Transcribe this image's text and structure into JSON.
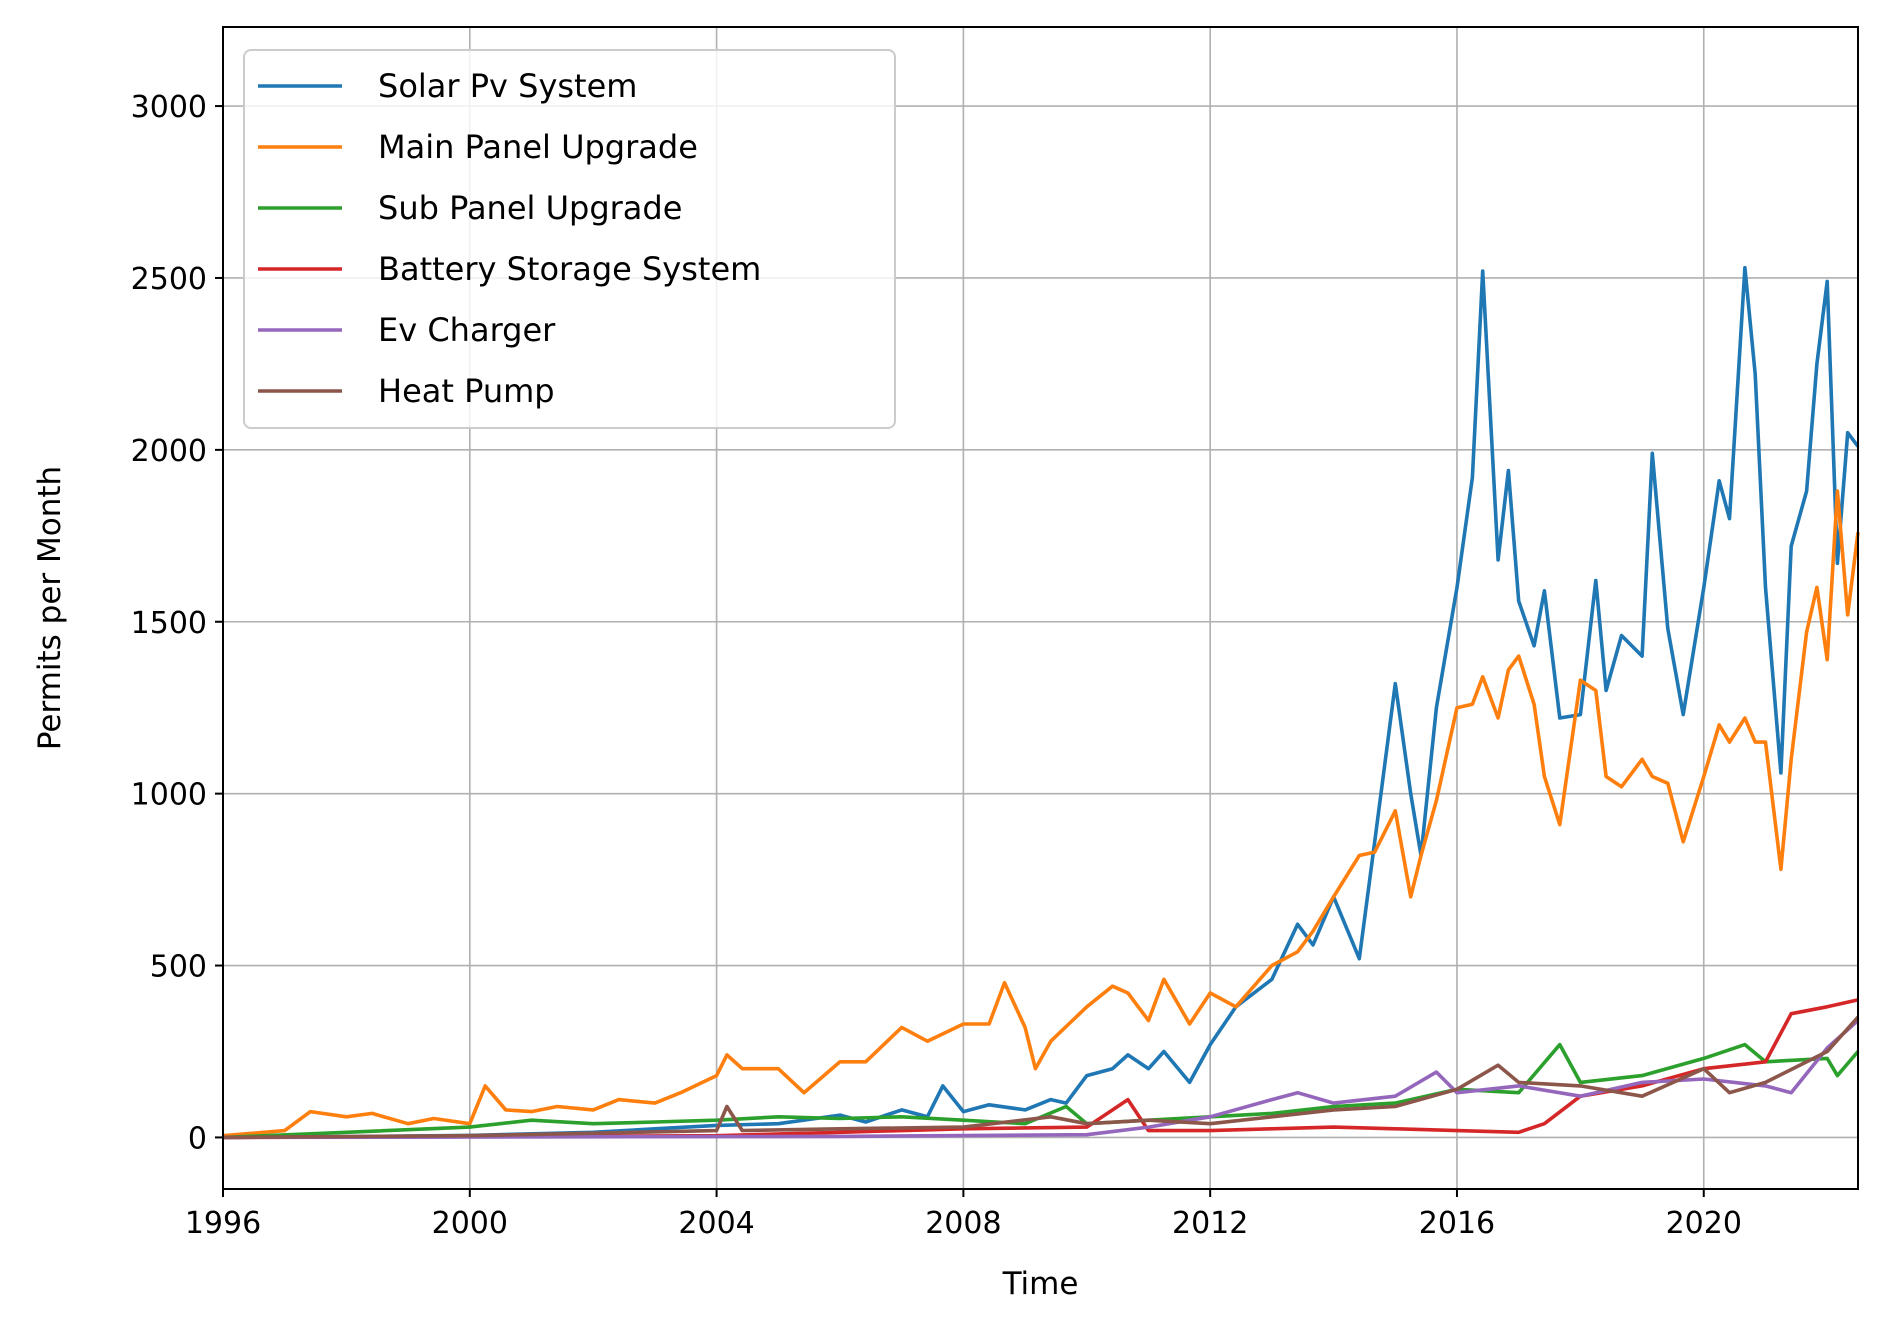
{
  "chart_data": {
    "type": "line",
    "title": "",
    "xlabel": "Time",
    "ylabel": "Permits per Month",
    "xlim": [
      "1996-01",
      "2022-07"
    ],
    "ylim": [
      -150,
      3230
    ],
    "x_ticks": [
      "1996",
      "2000",
      "2004",
      "2008",
      "2012",
      "2016",
      "2020"
    ],
    "y_ticks": [
      0,
      500,
      1000,
      1500,
      2000,
      2500,
      3000
    ],
    "grid": true,
    "legend": {
      "position": "upper-left"
    },
    "series": [
      {
        "name": "Solar Pv System",
        "color": "#1f77b4",
        "points": [
          [
            "1996-01",
            0
          ],
          [
            "1998-01",
            2
          ],
          [
            "2000-01",
            6
          ],
          [
            "2002-01",
            15
          ],
          [
            "2003-01",
            25
          ],
          [
            "2004-01",
            35
          ],
          [
            "2005-01",
            40
          ],
          [
            "2006-01",
            65
          ],
          [
            "2006-06",
            45
          ],
          [
            "2007-01",
            80
          ],
          [
            "2007-06",
            60
          ],
          [
            "2007-09",
            150
          ],
          [
            "2008-01",
            75
          ],
          [
            "2008-06",
            95
          ],
          [
            "2009-01",
            80
          ],
          [
            "2009-06",
            110
          ],
          [
            "2009-09",
            100
          ],
          [
            "2010-01",
            180
          ],
          [
            "2010-06",
            200
          ],
          [
            "2010-09",
            240
          ],
          [
            "2011-01",
            200
          ],
          [
            "2011-04",
            250
          ],
          [
            "2011-09",
            160
          ],
          [
            "2012-01",
            270
          ],
          [
            "2012-06",
            380
          ],
          [
            "2013-01",
            460
          ],
          [
            "2013-06",
            620
          ],
          [
            "2013-09",
            560
          ],
          [
            "2014-01",
            700
          ],
          [
            "2014-06",
            520
          ],
          [
            "2014-09",
            860
          ],
          [
            "2015-01",
            1320
          ],
          [
            "2015-04",
            1000
          ],
          [
            "2015-06",
            820
          ],
          [
            "2015-09",
            1250
          ],
          [
            "2016-01",
            1600
          ],
          [
            "2016-04",
            1920
          ],
          [
            "2016-06",
            2520
          ],
          [
            "2016-09",
            1680
          ],
          [
            "2016-11",
            1940
          ],
          [
            "2017-01",
            1560
          ],
          [
            "2017-04",
            1430
          ],
          [
            "2017-06",
            1590
          ],
          [
            "2017-09",
            1220
          ],
          [
            "2018-01",
            1230
          ],
          [
            "2018-04",
            1620
          ],
          [
            "2018-06",
            1300
          ],
          [
            "2018-09",
            1460
          ],
          [
            "2019-01",
            1400
          ],
          [
            "2019-03",
            1990
          ],
          [
            "2019-06",
            1480
          ],
          [
            "2019-09",
            1230
          ],
          [
            "2020-01",
            1600
          ],
          [
            "2020-04",
            1910
          ],
          [
            "2020-06",
            1800
          ],
          [
            "2020-09",
            2530
          ],
          [
            "2020-11",
            2220
          ],
          [
            "2021-01",
            1600
          ],
          [
            "2021-04",
            1060
          ],
          [
            "2021-06",
            1720
          ],
          [
            "2021-09",
            1880
          ],
          [
            "2021-11",
            2250
          ],
          [
            "2022-01",
            2490
          ],
          [
            "2022-03",
            1670
          ],
          [
            "2022-05",
            2050
          ],
          [
            "2022-07",
            2010
          ]
        ]
      },
      {
        "name": "Main Panel Upgrade",
        "color": "#ff7f0e",
        "points": [
          [
            "1996-01",
            5
          ],
          [
            "1997-01",
            20
          ],
          [
            "1997-06",
            75
          ],
          [
            "1998-01",
            60
          ],
          [
            "1998-06",
            70
          ],
          [
            "1999-01",
            40
          ],
          [
            "1999-06",
            55
          ],
          [
            "2000-01",
            40
          ],
          [
            "2000-04",
            150
          ],
          [
            "2000-08",
            80
          ],
          [
            "2001-01",
            75
          ],
          [
            "2001-06",
            90
          ],
          [
            "2002-01",
            80
          ],
          [
            "2002-06",
            110
          ],
          [
            "2003-01",
            100
          ],
          [
            "2003-06",
            130
          ],
          [
            "2004-01",
            180
          ],
          [
            "2004-03",
            240
          ],
          [
            "2004-06",
            200
          ],
          [
            "2005-01",
            200
          ],
          [
            "2005-06",
            130
          ],
          [
            "2006-01",
            220
          ],
          [
            "2006-06",
            220
          ],
          [
            "2007-01",
            320
          ],
          [
            "2007-06",
            280
          ],
          [
            "2008-01",
            330
          ],
          [
            "2008-06",
            330
          ],
          [
            "2008-09",
            450
          ],
          [
            "2009-01",
            320
          ],
          [
            "2009-03",
            200
          ],
          [
            "2009-06",
            280
          ],
          [
            "2010-01",
            380
          ],
          [
            "2010-06",
            440
          ],
          [
            "2010-09",
            420
          ],
          [
            "2011-01",
            340
          ],
          [
            "2011-04",
            460
          ],
          [
            "2011-09",
            330
          ],
          [
            "2012-01",
            420
          ],
          [
            "2012-06",
            380
          ],
          [
            "2013-01",
            500
          ],
          [
            "2013-06",
            540
          ],
          [
            "2013-09",
            600
          ],
          [
            "2014-01",
            700
          ],
          [
            "2014-06",
            820
          ],
          [
            "2014-09",
            830
          ],
          [
            "2015-01",
            950
          ],
          [
            "2015-04",
            700
          ],
          [
            "2015-06",
            820
          ],
          [
            "2015-09",
            980
          ],
          [
            "2016-01",
            1250
          ],
          [
            "2016-04",
            1260
          ],
          [
            "2016-06",
            1340
          ],
          [
            "2016-09",
            1220
          ],
          [
            "2016-11",
            1360
          ],
          [
            "2017-01",
            1400
          ],
          [
            "2017-04",
            1260
          ],
          [
            "2017-06",
            1050
          ],
          [
            "2017-09",
            910
          ],
          [
            "2018-01",
            1330
          ],
          [
            "2018-04",
            1300
          ],
          [
            "2018-06",
            1050
          ],
          [
            "2018-09",
            1020
          ],
          [
            "2019-01",
            1100
          ],
          [
            "2019-03",
            1050
          ],
          [
            "2019-06",
            1030
          ],
          [
            "2019-09",
            860
          ],
          [
            "2020-01",
            1050
          ],
          [
            "2020-04",
            1200
          ],
          [
            "2020-06",
            1150
          ],
          [
            "2020-09",
            1220
          ],
          [
            "2020-11",
            1150
          ],
          [
            "2021-01",
            1150
          ],
          [
            "2021-04",
            780
          ],
          [
            "2021-06",
            1100
          ],
          [
            "2021-09",
            1470
          ],
          [
            "2021-11",
            1600
          ],
          [
            "2022-01",
            1390
          ],
          [
            "2022-03",
            1880
          ],
          [
            "2022-05",
            1520
          ],
          [
            "2022-07",
            1760
          ]
        ]
      },
      {
        "name": "Sub Panel Upgrade",
        "color": "#2ca02c",
        "points": [
          [
            "1996-01",
            0
          ],
          [
            "1998-01",
            15
          ],
          [
            "2000-01",
            30
          ],
          [
            "2001-01",
            50
          ],
          [
            "2002-01",
            40
          ],
          [
            "2003-01",
            45
          ],
          [
            "2004-01",
            50
          ],
          [
            "2005-01",
            60
          ],
          [
            "2006-01",
            55
          ],
          [
            "2007-01",
            60
          ],
          [
            "2008-01",
            50
          ],
          [
            "2009-01",
            40
          ],
          [
            "2009-09",
            90
          ],
          [
            "2010-01",
            40
          ],
          [
            "2011-01",
            50
          ],
          [
            "2012-01",
            60
          ],
          [
            "2013-01",
            70
          ],
          [
            "2014-01",
            90
          ],
          [
            "2015-01",
            100
          ],
          [
            "2016-01",
            140
          ],
          [
            "2017-01",
            130
          ],
          [
            "2017-09",
            270
          ],
          [
            "2018-01",
            160
          ],
          [
            "2019-01",
            180
          ],
          [
            "2020-01",
            230
          ],
          [
            "2020-09",
            270
          ],
          [
            "2021-01",
            220
          ],
          [
            "2022-01",
            230
          ],
          [
            "2022-03",
            180
          ],
          [
            "2022-07",
            250
          ]
        ]
      },
      {
        "name": "Battery Storage System",
        "color": "#d62728",
        "points": [
          [
            "1996-01",
            0
          ],
          [
            "2000-01",
            2
          ],
          [
            "2004-01",
            5
          ],
          [
            "2006-01",
            15
          ],
          [
            "2008-01",
            25
          ],
          [
            "2010-01",
            30
          ],
          [
            "2010-09",
            110
          ],
          [
            "2011-01",
            20
          ],
          [
            "2012-01",
            20
          ],
          [
            "2013-01",
            25
          ],
          [
            "2014-01",
            30
          ],
          [
            "2015-01",
            25
          ],
          [
            "2016-01",
            20
          ],
          [
            "2017-01",
            15
          ],
          [
            "2017-06",
            40
          ],
          [
            "2018-01",
            120
          ],
          [
            "2019-01",
            150
          ],
          [
            "2020-01",
            200
          ],
          [
            "2021-01",
            220
          ],
          [
            "2021-06",
            360
          ],
          [
            "2022-01",
            380
          ],
          [
            "2022-07",
            400
          ]
        ]
      },
      {
        "name": "Ev Charger",
        "color": "#9467bd",
        "points": [
          [
            "1996-01",
            0
          ],
          [
            "2006-01",
            3
          ],
          [
            "2010-01",
            8
          ],
          [
            "2011-01",
            30
          ],
          [
            "2012-01",
            60
          ],
          [
            "2013-01",
            110
          ],
          [
            "2013-06",
            130
          ],
          [
            "2014-01",
            100
          ],
          [
            "2015-01",
            120
          ],
          [
            "2015-09",
            190
          ],
          [
            "2016-01",
            130
          ],
          [
            "2017-01",
            150
          ],
          [
            "2018-01",
            120
          ],
          [
            "2019-01",
            160
          ],
          [
            "2020-01",
            170
          ],
          [
            "2021-01",
            150
          ],
          [
            "2021-06",
            130
          ],
          [
            "2022-01",
            260
          ],
          [
            "2022-07",
            340
          ]
        ]
      },
      {
        "name": "Heat Pump",
        "color": "#8c564b",
        "points": [
          [
            "1996-01",
            0
          ],
          [
            "2000-01",
            5
          ],
          [
            "2004-01",
            20
          ],
          [
            "2004-03",
            90
          ],
          [
            "2004-06",
            20
          ],
          [
            "2006-01",
            25
          ],
          [
            "2008-01",
            30
          ],
          [
            "2009-06",
            60
          ],
          [
            "2010-01",
            40
          ],
          [
            "2011-01",
            50
          ],
          [
            "2012-01",
            40
          ],
          [
            "2013-01",
            60
          ],
          [
            "2014-01",
            80
          ],
          [
            "2015-01",
            90
          ],
          [
            "2016-01",
            140
          ],
          [
            "2016-09",
            210
          ],
          [
            "2017-01",
            160
          ],
          [
            "2018-01",
            150
          ],
          [
            "2019-01",
            120
          ],
          [
            "2020-01",
            200
          ],
          [
            "2020-06",
            130
          ],
          [
            "2021-01",
            160
          ],
          [
            "2022-01",
            250
          ],
          [
            "2022-07",
            350
          ]
        ]
      }
    ]
  }
}
